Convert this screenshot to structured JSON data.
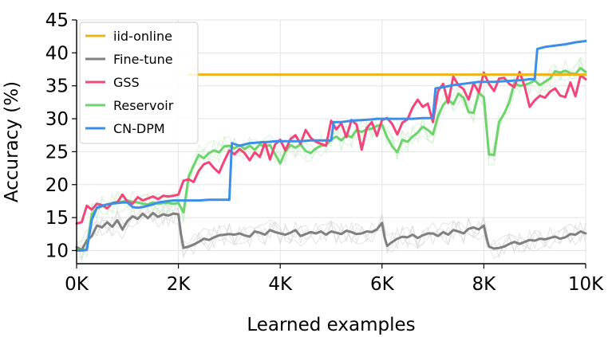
{
  "chart_data": {
    "type": "line",
    "xlabel": "Learned examples",
    "ylabel": "Accuracy (%)",
    "xlim": [
      0,
      10000
    ],
    "ylim": [
      8,
      45
    ],
    "grid": true,
    "legend_position": "top-left",
    "x_ticks": [
      {
        "value": 0,
        "label": "0K"
      },
      {
        "value": 2000,
        "label": "2K"
      },
      {
        "value": 4000,
        "label": "4K"
      },
      {
        "value": 6000,
        "label": "6K"
      },
      {
        "value": 8000,
        "label": "8K"
      },
      {
        "value": 10000,
        "label": "10K"
      }
    ],
    "y_ticks": [
      {
        "value": 10,
        "label": "10"
      },
      {
        "value": 15,
        "label": "15"
      },
      {
        "value": 20,
        "label": "20"
      },
      {
        "value": 25,
        "label": "25"
      },
      {
        "value": 30,
        "label": "30"
      },
      {
        "value": 35,
        "label": "35"
      },
      {
        "value": 40,
        "label": "40"
      },
      {
        "value": 45,
        "label": "45"
      }
    ],
    "series": [
      {
        "name": "iid-online",
        "color": "#f0b21a",
        "x": [
          2200,
          10000
        ],
        "y": [
          36.7,
          36.7
        ]
      },
      {
        "name": "Fine-tune",
        "color": "#808080",
        "x": [
          0,
          100,
          200,
          300,
          400,
          500,
          600,
          700,
          800,
          900,
          1000,
          1100,
          1200,
          1300,
          1400,
          1500,
          1600,
          1700,
          1800,
          1900,
          2000,
          2050,
          2100,
          2200,
          2300,
          2400,
          2500,
          2600,
          2700,
          2800,
          2900,
          3000,
          3100,
          3200,
          3300,
          3400,
          3500,
          3600,
          3700,
          3800,
          3900,
          4000,
          4100,
          4200,
          4300,
          4400,
          4500,
          4600,
          4700,
          4800,
          4900,
          5000,
          5100,
          5200,
          5300,
          5400,
          5500,
          5600,
          5700,
          5800,
          5900,
          6000,
          6050,
          6100,
          6200,
          6300,
          6400,
          6500,
          6600,
          6700,
          6800,
          6900,
          7000,
          7100,
          7200,
          7300,
          7400,
          7500,
          7600,
          7700,
          7800,
          7900,
          8000,
          8050,
          8100,
          8200,
          8300,
          8400,
          8500,
          8600,
          8700,
          8800,
          8900,
          9000,
          9100,
          9200,
          9300,
          9400,
          9500,
          9600,
          9700,
          9800,
          9900,
          10000
        ],
        "y": [
          10.5,
          10.1,
          11.5,
          12.2,
          13.8,
          13.5,
          14.3,
          13.6,
          14.6,
          13.2,
          14.5,
          15.2,
          14.8,
          15.6,
          14.9,
          15.7,
          15.1,
          15.5,
          15.3,
          15.6,
          15.5,
          12.5,
          10.4,
          10.6,
          10.9,
          11.3,
          11.8,
          11.6,
          12.0,
          12.3,
          12.4,
          12.5,
          12.4,
          12.6,
          12.3,
          12.1,
          12.9,
          12.7,
          12.4,
          13.1,
          12.8,
          12.6,
          12.4,
          12.7,
          13.1,
          12.2,
          12.5,
          12.8,
          12.6,
          12.9,
          12.4,
          12.9,
          12.7,
          12.5,
          13.0,
          12.8,
          12.5,
          12.6,
          12.9,
          12.8,
          13.2,
          14.2,
          12.0,
          10.7,
          11.3,
          11.8,
          12.1,
          12.0,
          12.4,
          11.9,
          12.3,
          12.6,
          12.6,
          12.2,
          12.8,
          12.4,
          13.1,
          12.9,
          12.6,
          13.3,
          13.5,
          13.2,
          13.8,
          12.0,
          10.6,
          10.3,
          10.4,
          10.6,
          11.0,
          11.3,
          11.0,
          11.3,
          11.6,
          11.5,
          11.8,
          11.7,
          11.9,
          12.1,
          11.8,
          12.0,
          12.5,
          12.4,
          12.9,
          12.6
        ]
      },
      {
        "name": "GSS",
        "color": "#f0467a",
        "x": [
          0,
          100,
          200,
          300,
          400,
          500,
          600,
          700,
          800,
          900,
          1000,
          1100,
          1200,
          1300,
          1400,
          1500,
          1600,
          1700,
          1800,
          1900,
          2000,
          2100,
          2200,
          2300,
          2400,
          2500,
          2600,
          2700,
          2800,
          2900,
          3000,
          3100,
          3200,
          3300,
          3400,
          3500,
          3600,
          3700,
          3800,
          3900,
          4000,
          4100,
          4200,
          4300,
          4400,
          4500,
          4600,
          4700,
          4800,
          4900,
          5000,
          5100,
          5200,
          5300,
          5400,
          5500,
          5600,
          5700,
          5800,
          5900,
          6000,
          6100,
          6200,
          6300,
          6400,
          6500,
          6600,
          6700,
          6800,
          6900,
          7000,
          7100,
          7200,
          7300,
          7400,
          7500,
          7600,
          7700,
          7800,
          7900,
          8000,
          8100,
          8200,
          8300,
          8400,
          8500,
          8600,
          8700,
          8800,
          8900,
          9000,
          9100,
          9200,
          9300,
          9400,
          9500,
          9600,
          9700,
          9800,
          9900,
          10000
        ],
        "y": [
          14.1,
          14.3,
          16.8,
          16.2,
          17.1,
          16.9,
          16.4,
          17.2,
          17.3,
          18.5,
          17.4,
          17.1,
          18.1,
          17.6,
          17.9,
          18.2,
          17.8,
          18.3,
          18.2,
          18.3,
          18.5,
          20.6,
          20.8,
          20.4,
          22.1,
          23.1,
          23.4,
          22.5,
          21.8,
          23.6,
          25.2,
          24.6,
          25.4,
          24.8,
          23.7,
          24.9,
          24.2,
          26.4,
          23.8,
          26.1,
          26.8,
          25.2,
          26.9,
          27.5,
          26.2,
          28.3,
          27.1,
          26.5,
          26.2,
          25.9,
          29.7,
          28.4,
          29.3,
          27.2,
          29.8,
          29.1,
          25.3,
          28.6,
          29.5,
          27.4,
          29.8,
          30.1,
          29.2,
          27.6,
          29.4,
          29.9,
          31.7,
          32.9,
          31.8,
          32.3,
          29.5,
          34.2,
          35.3,
          32.4,
          36.4,
          35.1,
          34.5,
          32.9,
          35.4,
          34.0,
          37.0,
          35.3,
          34.2,
          36.1,
          36.2,
          35.3,
          34.8,
          37.1,
          35.0,
          31.8,
          32.8,
          33.5,
          33.2,
          34.1,
          34.6,
          33.5,
          33.3,
          35.5,
          33.4,
          36.6,
          36.0
        ]
      },
      {
        "name": "Reservoir",
        "color": "#6dd36b",
        "x": [
          0,
          100,
          200,
          300,
          400,
          500,
          600,
          700,
          800,
          900,
          1000,
          1100,
          1200,
          1300,
          1400,
          1500,
          1600,
          1700,
          1800,
          1900,
          2000,
          2100,
          2200,
          2300,
          2400,
          2500,
          2600,
          2700,
          2800,
          2900,
          3000,
          3100,
          3200,
          3300,
          3400,
          3500,
          3600,
          3700,
          3800,
          3900,
          4000,
          4100,
          4200,
          4300,
          4400,
          4500,
          4600,
          4700,
          4800,
          4900,
          5000,
          5100,
          5200,
          5300,
          5400,
          5500,
          5600,
          5700,
          5800,
          5900,
          6000,
          6100,
          6200,
          6300,
          6400,
          6500,
          6600,
          6700,
          6800,
          6900,
          7000,
          7100,
          7200,
          7300,
          7400,
          7500,
          7600,
          7700,
          7800,
          7900,
          8000,
          8100,
          8200,
          8300,
          8400,
          8500,
          8600,
          8700,
          8800,
          8900,
          9000,
          9100,
          9200,
          9300,
          9400,
          9500,
          9600,
          9700,
          9800,
          9900,
          10000
        ],
        "y": [
          10.1,
          10.0,
          10.2,
          15.5,
          16.4,
          16.7,
          17.0,
          17.2,
          17.4,
          17.4,
          17.6,
          17.4,
          17.3,
          17.1,
          17.0,
          17.3,
          17.1,
          17.2,
          17.2,
          17.1,
          17.2,
          15.8,
          21.2,
          22.9,
          24.5,
          24.0,
          24.8,
          25.2,
          24.9,
          25.8,
          25.9,
          25.5,
          26.0,
          25.4,
          25.9,
          25.3,
          26.1,
          25.8,
          26.0,
          24.6,
          23.2,
          25.0,
          26.0,
          25.6,
          26.1,
          25.1,
          24.8,
          25.5,
          25.9,
          26.0,
          26.8,
          27.3,
          26.7,
          27.5,
          27.2,
          28.3,
          28.0,
          28.4,
          28.5,
          28.9,
          29.1,
          27.2,
          25.8,
          24.9,
          26.8,
          26.5,
          27.3,
          27.9,
          28.8,
          28.3,
          27.6,
          30.4,
          32.1,
          32.9,
          32.2,
          33.8,
          33.2,
          31.0,
          30.9,
          33.9,
          33.3,
          24.6,
          24.5,
          29.5,
          30.8,
          32.5,
          35.4,
          35.0,
          35.1,
          35.4,
          35.8,
          35.1,
          35.6,
          36.1,
          37.2,
          37.0,
          37.3,
          36.9,
          36.8,
          37.7,
          37.1
        ]
      },
      {
        "name": "CN-DPM",
        "color": "#3c8fe8",
        "x": [
          0,
          100,
          200,
          300,
          400,
          500,
          600,
          700,
          800,
          900,
          1000,
          1100,
          1200,
          1300,
          1400,
          1500,
          1600,
          1700,
          1800,
          1900,
          2000,
          2050,
          2200,
          2400,
          2600,
          2800,
          2900,
          3000,
          3050,
          3200,
          3400,
          3600,
          3800,
          3900,
          4000,
          4200,
          4400,
          4600,
          4800,
          4900,
          5000,
          5050,
          5200,
          5400,
          5600,
          5800,
          5900,
          6000,
          6200,
          6400,
          6600,
          6800,
          6900,
          7000,
          7050,
          7200,
          7400,
          7600,
          7800,
          7900,
          8000,
          8200,
          8400,
          8600,
          8800,
          8900,
          9000,
          9050,
          9200,
          9400,
          9600,
          9800,
          10000
        ],
        "y": [
          10.0,
          10.0,
          10.1,
          14.7,
          16.5,
          16.8,
          17.0,
          17.1,
          17.2,
          17.3,
          17.3,
          16.6,
          16.5,
          16.6,
          16.8,
          17.0,
          17.3,
          17.4,
          17.5,
          17.6,
          17.6,
          17.6,
          17.6,
          17.6,
          17.7,
          17.7,
          17.7,
          17.7,
          26.3,
          25.9,
          26.3,
          26.4,
          26.5,
          26.6,
          26.6,
          26.6,
          26.6,
          26.7,
          26.7,
          26.7,
          26.7,
          29.5,
          29.5,
          29.7,
          29.8,
          29.9,
          30.0,
          30.0,
          30.0,
          30.0,
          30.0,
          30.1,
          30.1,
          30.1,
          34.6,
          34.8,
          35.1,
          35.3,
          35.5,
          35.6,
          35.6,
          35.6,
          35.7,
          35.8,
          35.9,
          36.0,
          36.0,
          40.6,
          40.9,
          41.1,
          41.3,
          41.6,
          41.8
        ]
      }
    ]
  }
}
